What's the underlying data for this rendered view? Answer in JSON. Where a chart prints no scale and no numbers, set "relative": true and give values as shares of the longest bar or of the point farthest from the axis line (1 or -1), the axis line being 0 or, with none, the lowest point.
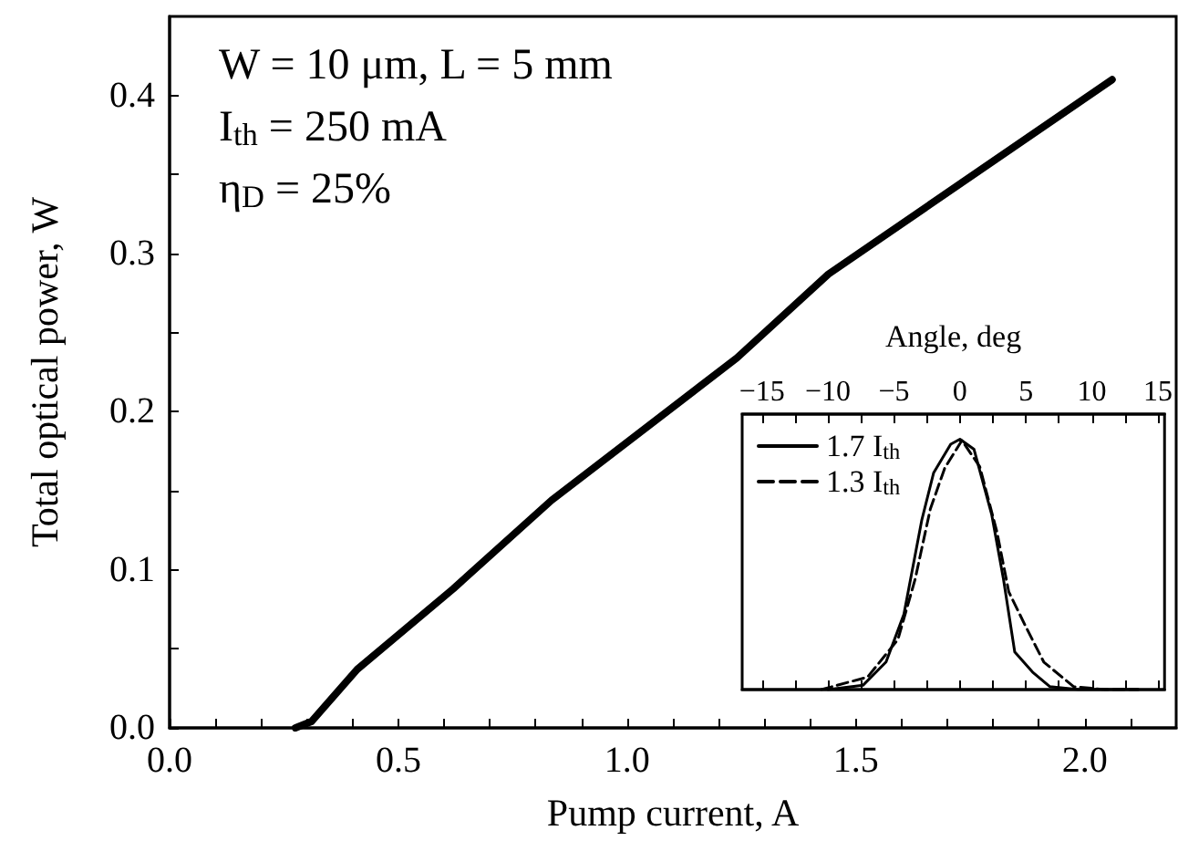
{
  "chart_data": [
    {
      "type": "line",
      "xlabel": "Pump current, A",
      "ylabel": "Total optical power, W",
      "xlim": [
        0,
        2.2
      ],
      "xticks": [
        {
          "value": 0,
          "label": "0.0"
        },
        {
          "value": 0.1,
          "label": null
        },
        {
          "value": 0.2,
          "label": null
        },
        {
          "value": 0.3,
          "label": null
        },
        {
          "value": 0.4,
          "label": null
        },
        {
          "value": 0.5,
          "label": "0.5"
        },
        {
          "value": 0.6,
          "label": null
        },
        {
          "value": 0.7,
          "label": null
        },
        {
          "value": 0.8,
          "label": null
        },
        {
          "value": 0.9,
          "label": null
        },
        {
          "value": 1,
          "label": "1.0"
        },
        {
          "value": 1.1,
          "label": null
        },
        {
          "value": 1.2,
          "label": null
        },
        {
          "value": 1.3,
          "label": null
        },
        {
          "value": 1.4,
          "label": null
        },
        {
          "value": 1.5,
          "label": "1.5"
        },
        {
          "value": 1.6,
          "label": null
        },
        {
          "value": 1.7,
          "label": null
        },
        {
          "value": 1.8,
          "label": null
        },
        {
          "value": 1.9,
          "label": null
        },
        {
          "value": 2,
          "label": "2.0"
        },
        {
          "value": 2.1,
          "label": null
        }
      ],
      "ylim": [
        0,
        0.45
      ],
      "yticks": [
        {
          "value": 0,
          "label": "0.0"
        },
        {
          "value": 0.05,
          "label": null
        },
        0.1,
        {
          "value": 0.15,
          "label": null
        },
        0.2,
        {
          "value": 0.25,
          "label": null
        },
        0.3,
        {
          "value": 0.35,
          "label": null
        },
        0.4
      ],
      "annotations": [
        "W = 10 μm, L = 5 mm",
        "I$_{th}$ = 250 mA",
        "η$_{D}$ = 25%"
      ],
      "grid": false,
      "legend": false,
      "marker": "none",
      "series": [
        {
          "color": "#000000",
          "x": [
            0.275,
            0.31,
            0.41,
            0.62,
            0.835,
            1.24,
            1.44,
            2.06
          ],
          "values": [
            0,
            0.004,
            0.037,
            0.088,
            0.144,
            0.234,
            0.287,
            0.41
          ]
        }
      ]
    },
    {
      "type": "line",
      "xlabel": "Angle, deg",
      "relative": true,
      "tick_labels": "x",
      "xlim": [
        -16.5,
        15.5
      ],
      "xticks": [
        {
          "value": -15,
          "label": "−15"
        },
        {
          "value": -12.5,
          "label": null
        },
        {
          "value": -10,
          "label": "−10"
        },
        {
          "value": -7.5,
          "label": null
        },
        {
          "value": -5,
          "label": "−5"
        },
        {
          "value": -2.5,
          "label": null
        },
        0,
        {
          "value": 2.5,
          "label": null
        },
        5,
        {
          "value": 7.5,
          "label": null
        },
        10,
        {
          "value": 12.5,
          "label": null
        },
        15
      ],
      "grid": false,
      "legend": "top left",
      "marker": "none",
      "series": [
        {
          "name": "1.7 I$_{th}$",
          "color": "#000000",
          "line_style": "solid",
          "x": [
            -10,
            -7.35,
            -5.6,
            -4.25,
            -2.9,
            -2,
            -0.7,
            0,
            1.06,
            2.4,
            3.3,
            4.15,
            5.5,
            6.8,
            9,
            13.5
          ],
          "values": [
            0,
            0.017,
            0.11,
            0.3,
            0.675,
            0.865,
            0.98,
            1,
            0.96,
            0.7,
            0.44,
            0.15,
            0.07,
            0.012,
            0,
            0
          ]
        },
        {
          "name": "1.3 I$_{th}$",
          "color": "#000000",
          "line_style": "dashed",
          "x": [
            -10.5,
            -7,
            -4.7,
            -3.4,
            -2.25,
            -1.15,
            0.15,
            1.5,
            2.8,
            3.7,
            5,
            6.35,
            8.6,
            11,
            13.5
          ],
          "values": [
            0,
            0.05,
            0.2,
            0.44,
            0.72,
            0.885,
            0.995,
            0.89,
            0.63,
            0.39,
            0.25,
            0.11,
            0.012,
            0,
            0
          ]
        }
      ]
    }
  ]
}
